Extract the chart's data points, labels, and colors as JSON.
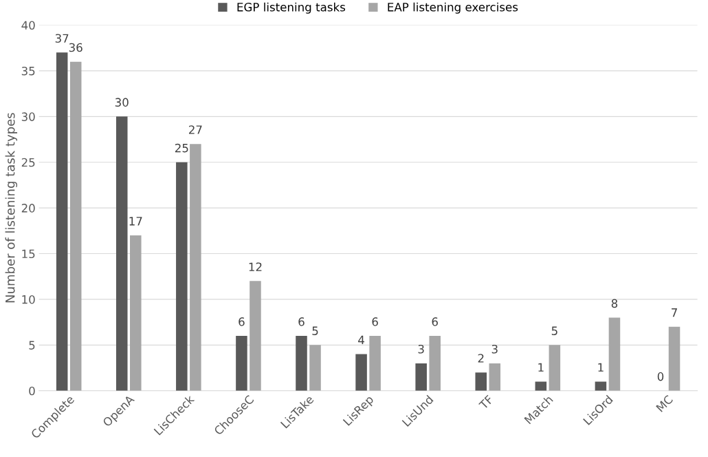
{
  "chart_data": {
    "type": "bar",
    "ylabel": "Number of listening task types",
    "categories": [
      "Complete",
      "OpenA",
      "LisCheck",
      "ChooseC",
      "LisTake",
      "LisRep",
      "LisUnd",
      "TF",
      "Match",
      "LisOrd",
      "MC"
    ],
    "series": [
      {
        "name": "EGP listening tasks",
        "color": "#595959",
        "values": [
          37,
          30,
          25,
          6,
          6,
          4,
          3,
          2,
          1,
          1,
          0
        ]
      },
      {
        "name": "EAP listening exercises",
        "color": "#a6a6a6",
        "values": [
          36,
          17,
          27,
          12,
          5,
          6,
          6,
          3,
          5,
          8,
          7
        ]
      }
    ],
    "ylim": [
      0,
      40
    ],
    "yticks": [
      0,
      5,
      10,
      15,
      20,
      25,
      30,
      35,
      40
    ],
    "grid": "y",
    "legend": "top",
    "data_labels": true
  }
}
